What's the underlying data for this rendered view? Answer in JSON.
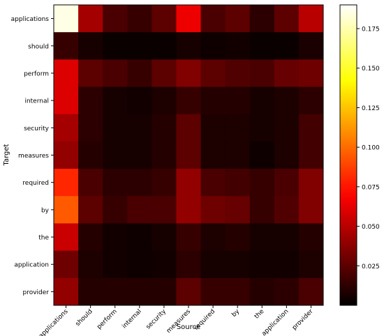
{
  "chart_data": {
    "type": "heatmap",
    "title": "",
    "xlabel": "Source",
    "ylabel": "Target",
    "x_labels": [
      "applications",
      "should",
      "perform",
      "internal",
      "security",
      "measures",
      "required",
      "by",
      "the",
      "application",
      "provider"
    ],
    "y_labels": [
      "applications",
      "should",
      "perform",
      "internal",
      "security",
      "measures",
      "required",
      "by",
      "the",
      "application",
      "provider"
    ],
    "values": [
      [
        0.185,
        0.045,
        0.02,
        0.015,
        0.025,
        0.065,
        0.02,
        0.025,
        0.012,
        0.025,
        0.05
      ],
      [
        0.015,
        0.006,
        0.003,
        0.003,
        0.003,
        0.006,
        0.004,
        0.005,
        0.003,
        0.003,
        0.007
      ],
      [
        0.06,
        0.025,
        0.02,
        0.015,
        0.025,
        0.035,
        0.025,
        0.022,
        0.02,
        0.028,
        0.03
      ],
      [
        0.06,
        0.012,
        0.006,
        0.005,
        0.008,
        0.015,
        0.01,
        0.01,
        0.006,
        0.008,
        0.012
      ],
      [
        0.045,
        0.012,
        0.006,
        0.006,
        0.01,
        0.025,
        0.008,
        0.008,
        0.006,
        0.008,
        0.018
      ],
      [
        0.04,
        0.01,
        0.006,
        0.006,
        0.01,
        0.025,
        0.008,
        0.008,
        0.004,
        0.008,
        0.018
      ],
      [
        0.08,
        0.02,
        0.012,
        0.012,
        0.015,
        0.04,
        0.02,
        0.018,
        0.015,
        0.02,
        0.035
      ],
      [
        0.095,
        0.025,
        0.015,
        0.02,
        0.02,
        0.04,
        0.03,
        0.028,
        0.015,
        0.022,
        0.035
      ],
      [
        0.055,
        0.01,
        0.005,
        0.004,
        0.006,
        0.015,
        0.008,
        0.01,
        0.006,
        0.006,
        0.01
      ],
      [
        0.03,
        0.008,
        0.005,
        0.004,
        0.005,
        0.012,
        0.006,
        0.006,
        0.005,
        0.005,
        0.008
      ],
      [
        0.04,
        0.01,
        0.01,
        0.01,
        0.01,
        0.025,
        0.015,
        0.015,
        0.01,
        0.012,
        0.02
      ]
    ],
    "colormap": "hot",
    "vmin": 0,
    "vmax": 0.19,
    "colorbar_ticks": [
      "0.025",
      "0.050",
      "0.075",
      "0.100",
      "0.125",
      "0.150",
      "0.175"
    ],
    "grid": false
  }
}
